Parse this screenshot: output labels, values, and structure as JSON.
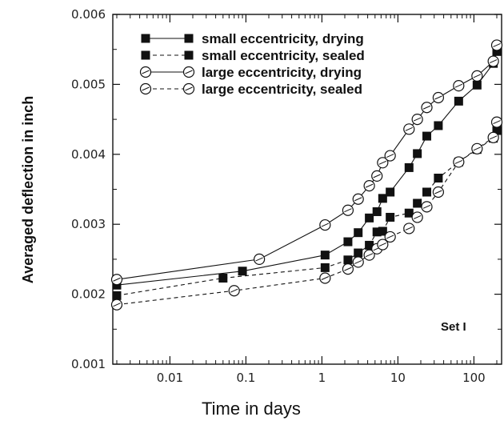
{
  "chart_data": {
    "type": "line",
    "title": "",
    "xlabel": "Time in days",
    "ylabel": "Averaged deflection in inch",
    "xscale": "log",
    "xlim": [
      0.002,
      200
    ],
    "ylim": [
      0.001,
      0.006
    ],
    "x_tick_labels": [
      "0.01",
      "0.1",
      "1",
      "10",
      "100"
    ],
    "x_tick_values": [
      0.01,
      0.1,
      1,
      10,
      100
    ],
    "y_tick_labels": [
      "0.001",
      "0.002",
      "0.003",
      "0.004",
      "0.005",
      "0.006"
    ],
    "y_tick_values": [
      0.001,
      0.002,
      0.003,
      0.004,
      0.005,
      0.006
    ],
    "grid": false,
    "legend_position": "top-left",
    "annotation": "Set I",
    "series": [
      {
        "name": "small eccentricity, drying",
        "marker": "filled-square",
        "line": "solid",
        "x": [
          0.002,
          0.09,
          1.1,
          2.2,
          3.0,
          4.2,
          5.3,
          6.3,
          7.9,
          14,
          18,
          24,
          34,
          63,
          110,
          180,
          200
        ],
        "y": [
          0.00213,
          0.00233,
          0.00256,
          0.00275,
          0.00288,
          0.00309,
          0.00318,
          0.00337,
          0.00346,
          0.00381,
          0.00401,
          0.00426,
          0.00441,
          0.00476,
          0.00499,
          0.0053,
          0.00547
        ]
      },
      {
        "name": "small eccentricity, sealed",
        "marker": "filled-square",
        "line": "dashed",
        "x": [
          0.002,
          0.05,
          1.1,
          2.2,
          3.0,
          4.2,
          5.3,
          6.3,
          7.9,
          14,
          18,
          24,
          34,
          63,
          110,
          180,
          200
        ],
        "y": [
          0.00198,
          0.00223,
          0.00238,
          0.00249,
          0.00259,
          0.0027,
          0.00289,
          0.0029,
          0.0031,
          0.00316,
          0.0033,
          0.00346,
          0.00366,
          0.00389,
          0.00407,
          0.00423,
          0.00434
        ]
      },
      {
        "name": "large eccentricity, drying",
        "marker": "open-circle",
        "line": "solid",
        "x": [
          0.002,
          0.15,
          1.1,
          2.2,
          3.0,
          4.2,
          5.3,
          6.3,
          7.9,
          14,
          18,
          24,
          34,
          63,
          110,
          180,
          200
        ],
        "y": [
          0.00221,
          0.0025,
          0.00299,
          0.0032,
          0.00336,
          0.00355,
          0.00369,
          0.00388,
          0.00398,
          0.00436,
          0.0045,
          0.00467,
          0.00481,
          0.00498,
          0.00512,
          0.00533,
          0.00556
        ]
      },
      {
        "name": "large eccentricity, sealed",
        "marker": "open-circle",
        "line": "dashed",
        "x": [
          0.002,
          0.07,
          1.1,
          2.2,
          3.0,
          4.2,
          5.3,
          6.3,
          7.9,
          14,
          18,
          24,
          34,
          63,
          110,
          180,
          200
        ],
        "y": [
          0.00185,
          0.00205,
          0.00223,
          0.00236,
          0.00246,
          0.00256,
          0.00265,
          0.00271,
          0.00282,
          0.00294,
          0.0031,
          0.00325,
          0.00346,
          0.00389,
          0.00408,
          0.00424,
          0.00446
        ]
      }
    ]
  }
}
